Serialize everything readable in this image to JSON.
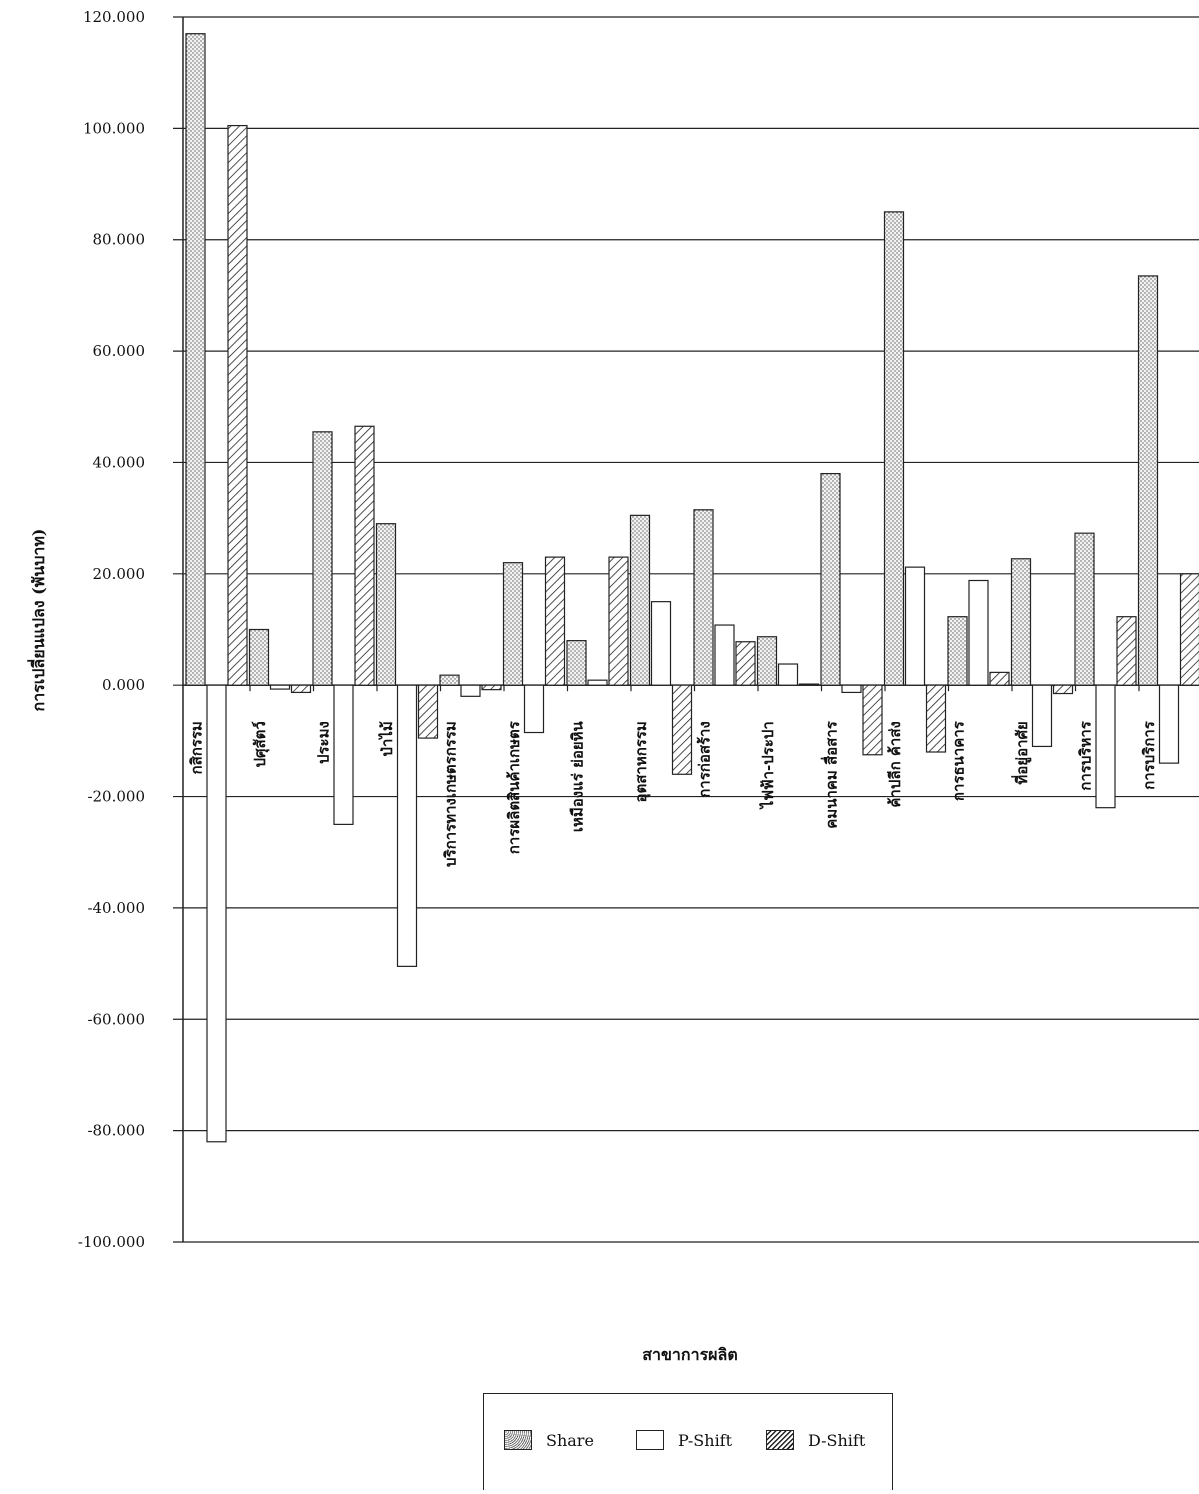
{
  "chart_data": {
    "type": "bar",
    "title": "",
    "xlabel": "สาขาการผลิต",
    "ylabel": "การเปลี่ยนแปลง (พันบาท)",
    "ylim": [
      -100000,
      120000
    ],
    "yticks": [
      "120.000",
      "100.000",
      "80.000",
      "60.000",
      "40.000",
      "20.000",
      "0.000",
      "-20.000",
      "-40.000",
      "-60.000",
      "-80.000",
      "-100.000"
    ],
    "ytick_values": [
      120000,
      100000,
      80000,
      60000,
      40000,
      20000,
      0,
      -20000,
      -40000,
      -60000,
      -80000,
      -100000
    ],
    "grid": true,
    "legend_position": "bottom-center",
    "categories": [
      "กสิกรรม",
      "ปศุสัตว์",
      "ประมง",
      "ป่าไม้",
      "บริการทางเกษตรกรรม",
      "การผลิตสินค้าเกษตร",
      "เหมืองแร่ ย่อยหิน",
      "อุตสาหกรรม",
      "การก่อสร้าง",
      "ไฟฟ้า-ประปา",
      "คมนาคม สื่อสาร",
      "ค้าปลีก ค้าส่ง",
      "การธนาคาร",
      "ที่อยู่อาศัย",
      "การบริหาร",
      "การบริการ"
    ],
    "series": [
      {
        "name": "Share",
        "values": [
          117000,
          10000,
          45500,
          29000,
          1800,
          22000,
          8000,
          30500,
          31500,
          8700,
          38000,
          85000,
          12300,
          22700,
          27300,
          73500
        ]
      },
      {
        "name": "P-Shift",
        "values": [
          -82000,
          -700,
          -25000,
          -50500,
          -2000,
          -8500,
          900,
          15000,
          10800,
          3800,
          -1300,
          21200,
          18800,
          -11000,
          -22000,
          -14000
        ]
      },
      {
        "name": "D-Shift",
        "values": [
          100500,
          -1300,
          46500,
          -9500,
          -800,
          23000,
          23000,
          -16000,
          7800,
          200,
          -12500,
          -12000,
          2300,
          -1500,
          12300,
          20000
        ]
      }
    ]
  },
  "legend": {
    "items": [
      {
        "label": "Share"
      },
      {
        "label": "P-Shift"
      },
      {
        "label": "D-Shift"
      }
    ]
  }
}
